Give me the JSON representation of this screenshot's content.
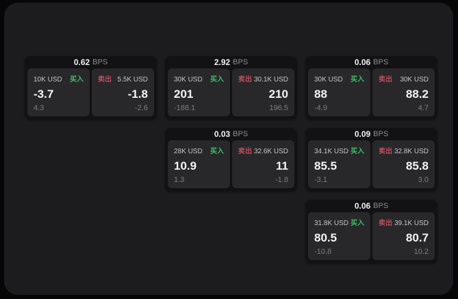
{
  "labels": {
    "bps": "BPS",
    "buy": "买入",
    "sell": "卖出"
  },
  "colors": {
    "screen_bg": "#1c1c1e",
    "card_bg": "#121214",
    "panel_bg": "#28282b",
    "buy_green": "#38c263",
    "sell_red": "#c34b5c",
    "value_white": "#f5f5f7",
    "muted_gray": "#7d7d83"
  },
  "cards": [
    {
      "bps": "0.62",
      "buy": {
        "notional": "10K USD",
        "price": "-3.7",
        "change": "4.3"
      },
      "sell": {
        "notional": "5.5K USD",
        "price": "-1.8",
        "change": "-2.6"
      }
    },
    {
      "bps": "2.92",
      "buy": {
        "notional": "30K USD",
        "price": "201",
        "change": "-188.1"
      },
      "sell": {
        "notional": "30.1K USD",
        "price": "210",
        "change": "196.5"
      }
    },
    {
      "bps": "0.06",
      "buy": {
        "notional": "30K USD",
        "price": "88",
        "change": "-4.9"
      },
      "sell": {
        "notional": "30K USD",
        "price": "88.2",
        "change": "4.7"
      }
    },
    {
      "bps": "0.03",
      "buy": {
        "notional": "28K USD",
        "price": "10.9",
        "change": "1.3"
      },
      "sell": {
        "notional": "32.6K USD",
        "price": "11",
        "change": "-1.8"
      }
    },
    {
      "bps": "0.09",
      "buy": {
        "notional": "34.1K USD",
        "price": "85.5",
        "change": "-3.1"
      },
      "sell": {
        "notional": "32.8K USD",
        "price": "85.8",
        "change": "3.0"
      }
    },
    {
      "bps": "0.06",
      "buy": {
        "notional": "31.8K USD",
        "price": "80.5",
        "change": "-10.8"
      },
      "sell": {
        "notional": "39.1K USD",
        "price": "80.7",
        "change": "10.2"
      }
    }
  ]
}
